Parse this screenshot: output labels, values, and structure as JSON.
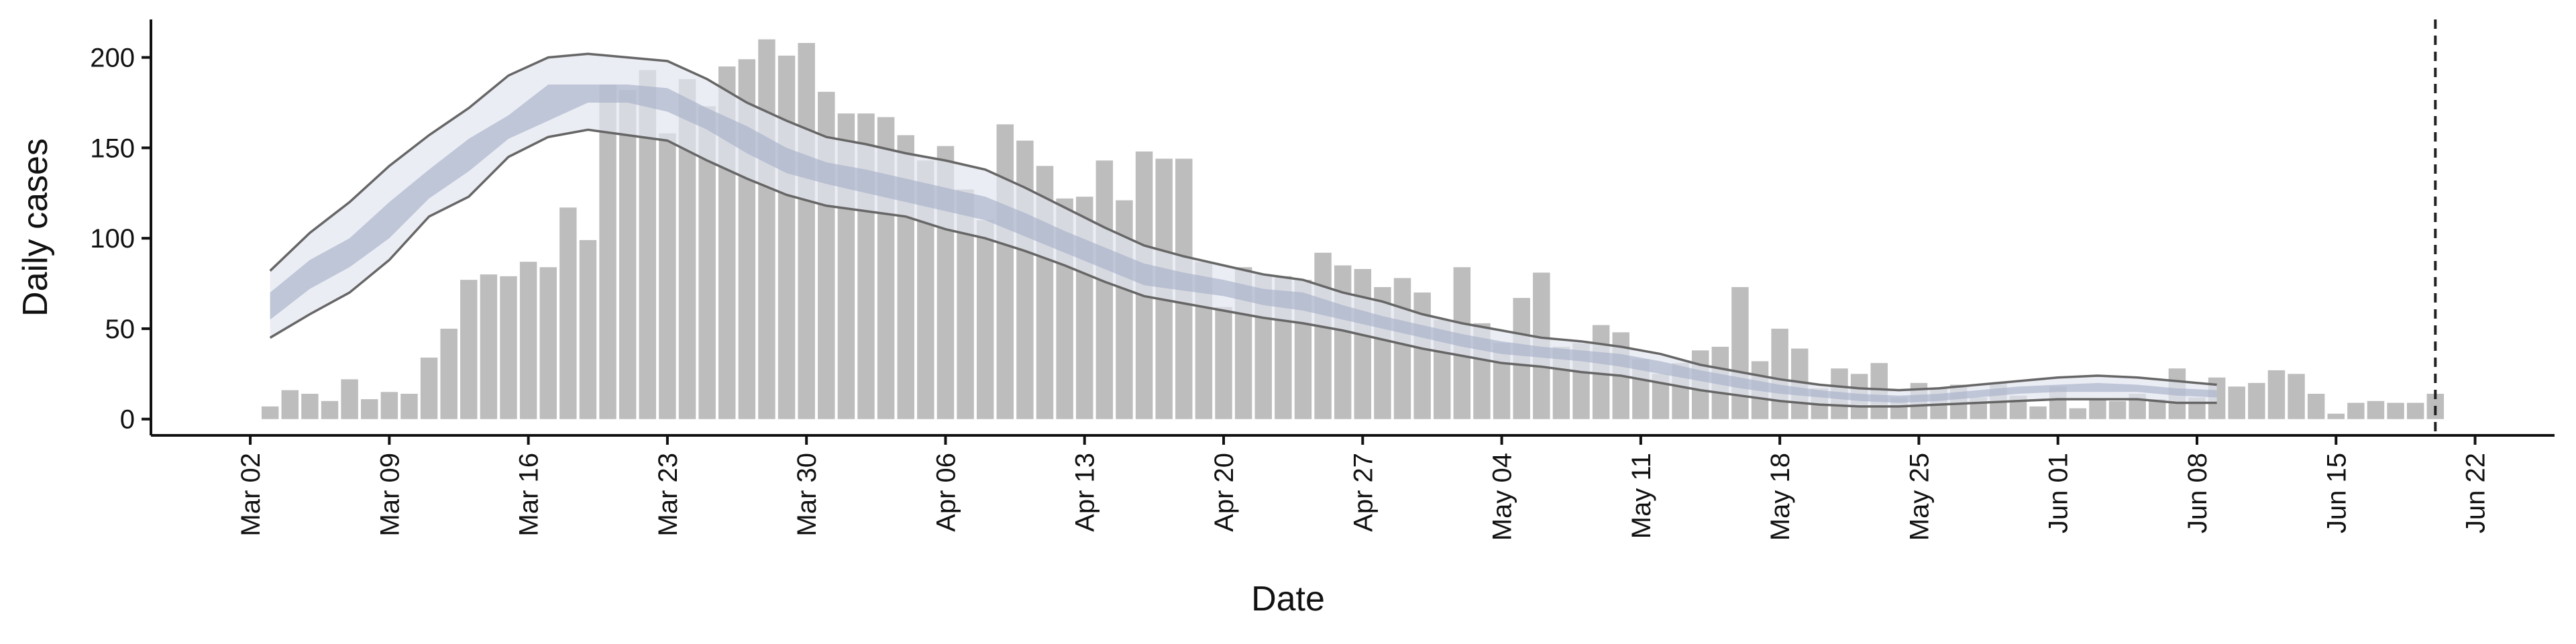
{
  "chart_data": {
    "type": "bar",
    "x_label": "Date",
    "y_label": "Daily cases",
    "x": [
      "Mar 02",
      "Mar 03",
      "Mar 04",
      "Mar 05",
      "Mar 06",
      "Mar 07",
      "Mar 08",
      "Mar 09",
      "Mar 10",
      "Mar 11",
      "Mar 12",
      "Mar 13",
      "Mar 14",
      "Mar 15",
      "Mar 16",
      "Mar 17",
      "Mar 18",
      "Mar 19",
      "Mar 20",
      "Mar 21",
      "Mar 22",
      "Mar 23",
      "Mar 24",
      "Mar 25",
      "Mar 26",
      "Mar 27",
      "Mar 28",
      "Mar 29",
      "Mar 30",
      "Mar 31",
      "Apr 01",
      "Apr 02",
      "Apr 03",
      "Apr 04",
      "Apr 05",
      "Apr 06",
      "Apr 07",
      "Apr 08",
      "Apr 09",
      "Apr 10",
      "Apr 11",
      "Apr 12",
      "Apr 13",
      "Apr 14",
      "Apr 15",
      "Apr 16",
      "Apr 17",
      "Apr 18",
      "Apr 19",
      "Apr 20",
      "Apr 21",
      "Apr 22",
      "Apr 23",
      "Apr 24",
      "Apr 25",
      "Apr 26",
      "Apr 27",
      "Apr 28",
      "Apr 29",
      "Apr 30",
      "May 01",
      "May 02",
      "May 03",
      "May 04",
      "May 05",
      "May 06",
      "May 07",
      "May 08",
      "May 09",
      "May 10",
      "May 11",
      "May 12",
      "May 13",
      "May 14",
      "May 15",
      "May 16",
      "May 17",
      "May 18",
      "May 19",
      "May 20",
      "May 21",
      "May 22",
      "May 23",
      "May 24",
      "May 25",
      "May 26",
      "May 27",
      "May 28",
      "May 29",
      "May 30",
      "May 31",
      "Jun 01",
      "Jun 02",
      "Jun 03",
      "Jun 04",
      "Jun 05",
      "Jun 06",
      "Jun 07",
      "Jun 08",
      "Jun 09",
      "Jun 10",
      "Jun 11",
      "Jun 12",
      "Jun 13",
      "Jun 14",
      "Jun 15",
      "Jun 16",
      "Jun 17",
      "Jun 18",
      "Jun 19",
      "Jun 20"
    ],
    "values": [
      0,
      7,
      16,
      14,
      10,
      22,
      11,
      15,
      14,
      34,
      50,
      77,
      80,
      79,
      87,
      84,
      117,
      99,
      185,
      182,
      193,
      158,
      188,
      173,
      195,
      199,
      210,
      201,
      208,
      181,
      169,
      169,
      167,
      157,
      143,
      151,
      127,
      110,
      163,
      154,
      140,
      122,
      123,
      143,
      121,
      148,
      144,
      144,
      87,
      62,
      84,
      80,
      79,
      77,
      92,
      85,
      83,
      73,
      78,
      70,
      55,
      84,
      53,
      42,
      67,
      81,
      40,
      42,
      52,
      48,
      33,
      25,
      31,
      38,
      40,
      73,
      32,
      50,
      39,
      17,
      28,
      25,
      31,
      12,
      20,
      17,
      19,
      12,
      20,
      13,
      7,
      18,
      6,
      11,
      10,
      14,
      11,
      28,
      12,
      23,
      18,
      20,
      27,
      25,
      14,
      3,
      9,
      10,
      9,
      9,
      14
    ],
    "color": "#bdbdbd",
    "band": {
      "x": [
        "Mar 03",
        "Mar 05",
        "Mar 07",
        "Mar 09",
        "Mar 11",
        "Mar 13",
        "Mar 15",
        "Mar 17",
        "Mar 19",
        "Mar 21",
        "Mar 23",
        "Mar 25",
        "Mar 27",
        "Mar 29",
        "Mar 31",
        "Apr 02",
        "Apr 04",
        "Apr 06",
        "Apr 08",
        "Apr 10",
        "Apr 12",
        "Apr 14",
        "Apr 16",
        "Apr 18",
        "Apr 20",
        "Apr 22",
        "Apr 24",
        "Apr 26",
        "Apr 28",
        "Apr 30",
        "May 02",
        "May 04",
        "May 06",
        "May 08",
        "May 10",
        "May 12",
        "May 14",
        "May 16",
        "May 18",
        "May 20",
        "May 22",
        "May 24",
        "May 26",
        "May 28",
        "May 30",
        "Jun 01",
        "Jun 03",
        "Jun 05",
        "Jun 07",
        "Jun 09"
      ],
      "outer_upper": [
        82,
        103,
        120,
        140,
        157,
        172,
        190,
        200,
        202,
        200,
        198,
        188,
        175,
        165,
        156,
        152,
        147,
        143,
        138,
        128,
        117,
        106,
        96,
        90,
        85,
        80,
        77,
        70,
        65,
        58,
        53,
        49,
        45,
        43,
        40,
        36,
        30,
        26,
        22,
        19,
        17,
        16,
        17,
        19,
        21,
        23,
        24,
        23,
        21,
        19
      ],
      "inner_upper": [
        70,
        88,
        100,
        120,
        138,
        155,
        168,
        185,
        185,
        185,
        183,
        172,
        162,
        150,
        142,
        138,
        133,
        128,
        123,
        114,
        104,
        95,
        86,
        81,
        77,
        72,
        70,
        63,
        57,
        52,
        47,
        43,
        40,
        38,
        36,
        32,
        27,
        23,
        19,
        16,
        14,
        13,
        14,
        16,
        18,
        19,
        20,
        19,
        17,
        16
      ],
      "inner_lower": [
        55,
        72,
        84,
        100,
        122,
        137,
        155,
        165,
        175,
        175,
        170,
        160,
        147,
        136,
        130,
        125,
        120,
        115,
        110,
        101,
        92,
        83,
        74,
        71,
        68,
        63,
        60,
        55,
        50,
        45,
        40,
        36,
        34,
        32,
        29,
        25,
        21,
        17,
        14,
        12,
        10,
        9,
        10,
        12,
        14,
        15,
        15,
        15,
        13,
        12
      ],
      "outer_lower": [
        45,
        58,
        70,
        88,
        112,
        123,
        145,
        156,
        160,
        157,
        154,
        143,
        133,
        124,
        118,
        115,
        112,
        105,
        100,
        93,
        85,
        76,
        68,
        64,
        60,
        56,
        53,
        49,
        44,
        39,
        35,
        31,
        29,
        26,
        24,
        20,
        16,
        13,
        10,
        8,
        7,
        7,
        8,
        9,
        10,
        11,
        11,
        11,
        9,
        9
      ],
      "outer_color": "#e3e6ef",
      "inner_color": "#a7b1c9",
      "edge_color": "#666666"
    },
    "xlim": [
      -5,
      116
    ],
    "xticks": [
      {
        "value": 0,
        "label": "Mar 02"
      },
      {
        "value": 7,
        "label": "Mar 09"
      },
      {
        "value": 14,
        "label": "Mar 16"
      },
      {
        "value": 21,
        "label": "Mar 23"
      },
      {
        "value": 28,
        "label": "Mar 30"
      },
      {
        "value": 35,
        "label": "Apr 06"
      },
      {
        "value": 42,
        "label": "Apr 13"
      },
      {
        "value": 49,
        "label": "Apr 20"
      },
      {
        "value": 56,
        "label": "Apr 27"
      },
      {
        "value": 63,
        "label": "May 04"
      },
      {
        "value": 70,
        "label": "May 11"
      },
      {
        "value": 77,
        "label": "May 18"
      },
      {
        "value": 84,
        "label": "May 25"
      },
      {
        "value": 91,
        "label": "Jun 01"
      },
      {
        "value": 98,
        "label": "Jun 08"
      },
      {
        "value": 105,
        "label": "Jun 15"
      },
      {
        "value": 112,
        "label": "Jun 22"
      }
    ],
    "vline_x": 110,
    "ylim": [
      -9,
      221
    ],
    "yticks": [
      0,
      50,
      100,
      150,
      200
    ]
  }
}
